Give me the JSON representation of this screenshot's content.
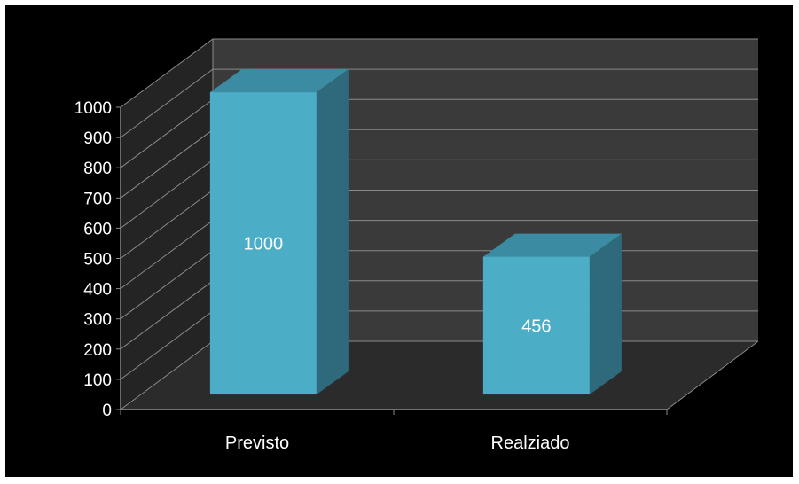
{
  "chart_data": {
    "type": "bar",
    "style": "3d-column",
    "categories": [
      "Previsto",
      "Realziado"
    ],
    "series": [
      {
        "values": [
          1000,
          456
        ]
      }
    ],
    "data_labels": [
      "1000",
      "456"
    ],
    "ylim": [
      0,
      1000
    ],
    "yticks": [
      0,
      100,
      200,
      300,
      400,
      500,
      600,
      700,
      800,
      900,
      1000
    ],
    "ytick_labels": [
      "0",
      "100",
      "200",
      "300",
      "400",
      "500",
      "600",
      "700",
      "800",
      "900",
      "1000"
    ],
    "grid": true,
    "legend": "none",
    "colors": {
      "background": "#000000",
      "wall": "#3a3a3a",
      "floor": "#2b2b2b",
      "gridline": "#8a8a8a",
      "bar_front": "#4badc6",
      "bar_side": "#2e6a7c",
      "bar_top": "#3b8ca2",
      "text": "#ffffff"
    }
  }
}
